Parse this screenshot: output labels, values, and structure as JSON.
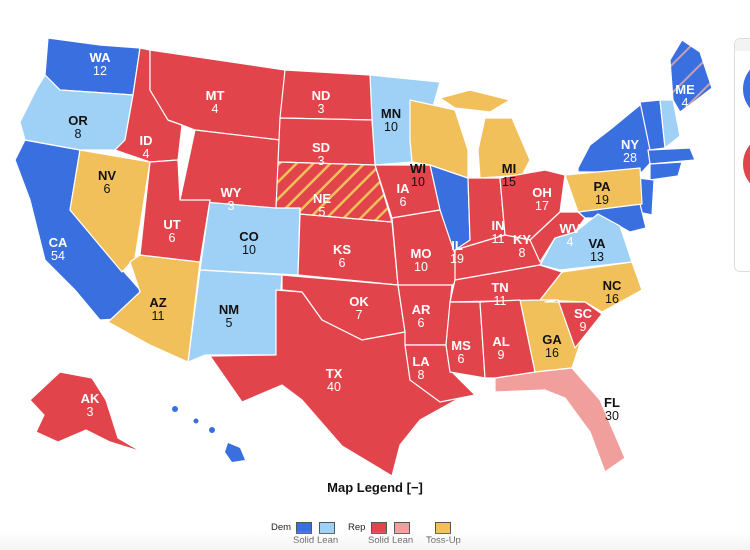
{
  "colors": {
    "dem_solid": "#3a6fe0",
    "dem_lean": "#9fd0f5",
    "rep_solid": "#e2444c",
    "rep_lean": "#f19f9c",
    "toss_up": "#f2c05a"
  },
  "states": {
    "WA": {
      "abbr": "WA",
      "ev": "12",
      "rating": "dem_solid"
    },
    "OR": {
      "abbr": "OR",
      "ev": "8",
      "rating": "dem_lean"
    },
    "CA": {
      "abbr": "CA",
      "ev": "54",
      "rating": "dem_solid"
    },
    "NV": {
      "abbr": "NV",
      "ev": "6",
      "rating": "toss_up"
    },
    "ID": {
      "abbr": "ID",
      "ev": "4",
      "rating": "rep_solid"
    },
    "MT": {
      "abbr": "MT",
      "ev": "4",
      "rating": "rep_solid"
    },
    "WY": {
      "abbr": "WY",
      "ev": "3",
      "rating": "rep_solid"
    },
    "UT": {
      "abbr": "UT",
      "ev": "6",
      "rating": "rep_solid"
    },
    "AZ": {
      "abbr": "AZ",
      "ev": "11",
      "rating": "toss_up"
    },
    "CO": {
      "abbr": "CO",
      "ev": "10",
      "rating": "dem_lean"
    },
    "NM": {
      "abbr": "NM",
      "ev": "5",
      "rating": "dem_lean"
    },
    "ND": {
      "abbr": "ND",
      "ev": "3",
      "rating": "rep_solid"
    },
    "SD": {
      "abbr": "SD",
      "ev": "3",
      "rating": "rep_solid"
    },
    "NE": {
      "abbr": "NE",
      "ev": "5",
      "rating": "rep_solid_split"
    },
    "KS": {
      "abbr": "KS",
      "ev": "6",
      "rating": "rep_solid"
    },
    "OK": {
      "abbr": "OK",
      "ev": "7",
      "rating": "rep_solid"
    },
    "TX": {
      "abbr": "TX",
      "ev": "40",
      "rating": "rep_solid"
    },
    "MN": {
      "abbr": "MN",
      "ev": "10",
      "rating": "dem_lean"
    },
    "IA": {
      "abbr": "IA",
      "ev": "6",
      "rating": "rep_solid"
    },
    "MO": {
      "abbr": "MO",
      "ev": "10",
      "rating": "rep_solid"
    },
    "AR": {
      "abbr": "AR",
      "ev": "6",
      "rating": "rep_solid"
    },
    "LA": {
      "abbr": "LA",
      "ev": "8",
      "rating": "rep_solid"
    },
    "WI": {
      "abbr": "WI",
      "ev": "10",
      "rating": "toss_up"
    },
    "IL": {
      "abbr": "IL",
      "ev": "19",
      "rating": "dem_solid"
    },
    "MI": {
      "abbr": "MI",
      "ev": "15",
      "rating": "toss_up"
    },
    "IN": {
      "abbr": "IN",
      "ev": "11",
      "rating": "rep_solid"
    },
    "OH": {
      "abbr": "OH",
      "ev": "17",
      "rating": "rep_solid"
    },
    "KY": {
      "abbr": "KY",
      "ev": "8",
      "rating": "rep_solid"
    },
    "TN": {
      "abbr": "TN",
      "ev": "11",
      "rating": "rep_solid"
    },
    "MS": {
      "abbr": "MS",
      "ev": "6",
      "rating": "rep_solid"
    },
    "AL": {
      "abbr": "AL",
      "ev": "9",
      "rating": "rep_solid"
    },
    "GA": {
      "abbr": "GA",
      "ev": "16",
      "rating": "toss_up"
    },
    "FL": {
      "abbr": "FL",
      "ev": "30",
      "rating": "rep_lean"
    },
    "SC": {
      "abbr": "SC",
      "ev": "9",
      "rating": "rep_solid"
    },
    "NC": {
      "abbr": "NC",
      "ev": "16",
      "rating": "toss_up"
    },
    "VA": {
      "abbr": "VA",
      "ev": "13",
      "rating": "dem_lean"
    },
    "WV": {
      "abbr": "WV",
      "ev": "4",
      "rating": "rep_solid"
    },
    "PA": {
      "abbr": "PA",
      "ev": "19",
      "rating": "toss_up"
    },
    "NY": {
      "abbr": "NY",
      "ev": "28",
      "rating": "dem_solid"
    },
    "ME": {
      "abbr": "ME",
      "ev": "4",
      "rating": "dem_solid_split"
    },
    "AK": {
      "abbr": "AK",
      "ev": "3",
      "rating": "rep_solid"
    }
  },
  "legend": {
    "title": "Map Legend",
    "toggle": "[−]",
    "dem": "Dem",
    "rep": "Rep",
    "solid": "Solid",
    "lean": "Lean",
    "toss_up": "Toss-Up"
  }
}
